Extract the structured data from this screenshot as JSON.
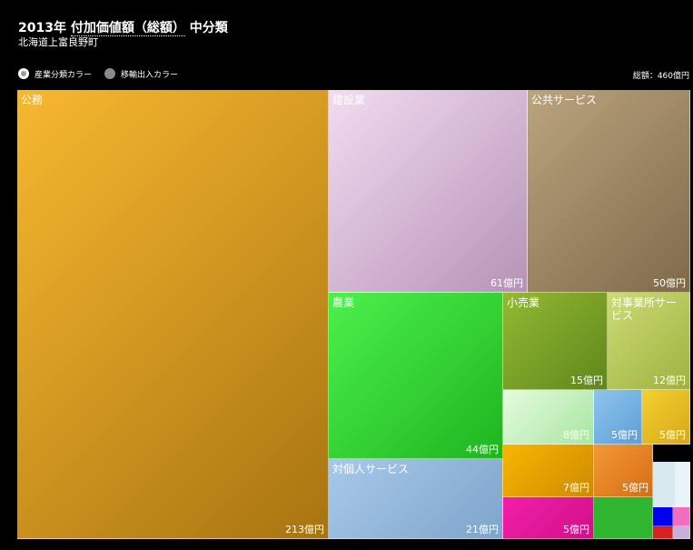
{
  "header": {
    "year": "2013年",
    "measure": "付加価値額（総額）",
    "level": "中分類",
    "subtitle": "北海道上富良野町"
  },
  "controls": {
    "options": [
      "産業分類カラー",
      "移輸出入カラー"
    ],
    "selected": "産業分類カラー"
  },
  "total_label": "総額：460億円",
  "colors": {
    "koumu": "#e8a320",
    "kensetsu": "#d9b6d6",
    "koukyou": "#9c8660",
    "nougyou": "#33dd33",
    "kouri": "#7fa826",
    "taijigyou": "#b8cc55",
    "taikojin": "#93b9dc"
  },
  "chart_data": {
    "type": "treemap",
    "unit": "億円",
    "total": 460,
    "items": [
      {
        "name": "公務",
        "value": 213,
        "label": "213億円"
      },
      {
        "name": "建設業",
        "value": 61,
        "label": "61億円"
      },
      {
        "name": "公共サービス",
        "value": 50,
        "label": "50億円"
      },
      {
        "name": "農業",
        "value": 44,
        "label": "44億円"
      },
      {
        "name": "対個人サービス",
        "value": 21,
        "label": "21億円"
      },
      {
        "name": "小売業",
        "value": 15,
        "label": "15億円"
      },
      {
        "name": "対事業所サービス",
        "value": 12,
        "label": "12億円"
      },
      {
        "name": "",
        "value": 8,
        "label": "8億円"
      },
      {
        "name": "",
        "value": 5,
        "label": "5億円"
      },
      {
        "name": "",
        "value": 5,
        "label": "5億円"
      },
      {
        "name": "",
        "value": 7,
        "label": "7億円"
      },
      {
        "name": "",
        "value": 5,
        "label": "5億円"
      },
      {
        "name": "",
        "value": 5,
        "label": "5億円"
      }
    ]
  }
}
